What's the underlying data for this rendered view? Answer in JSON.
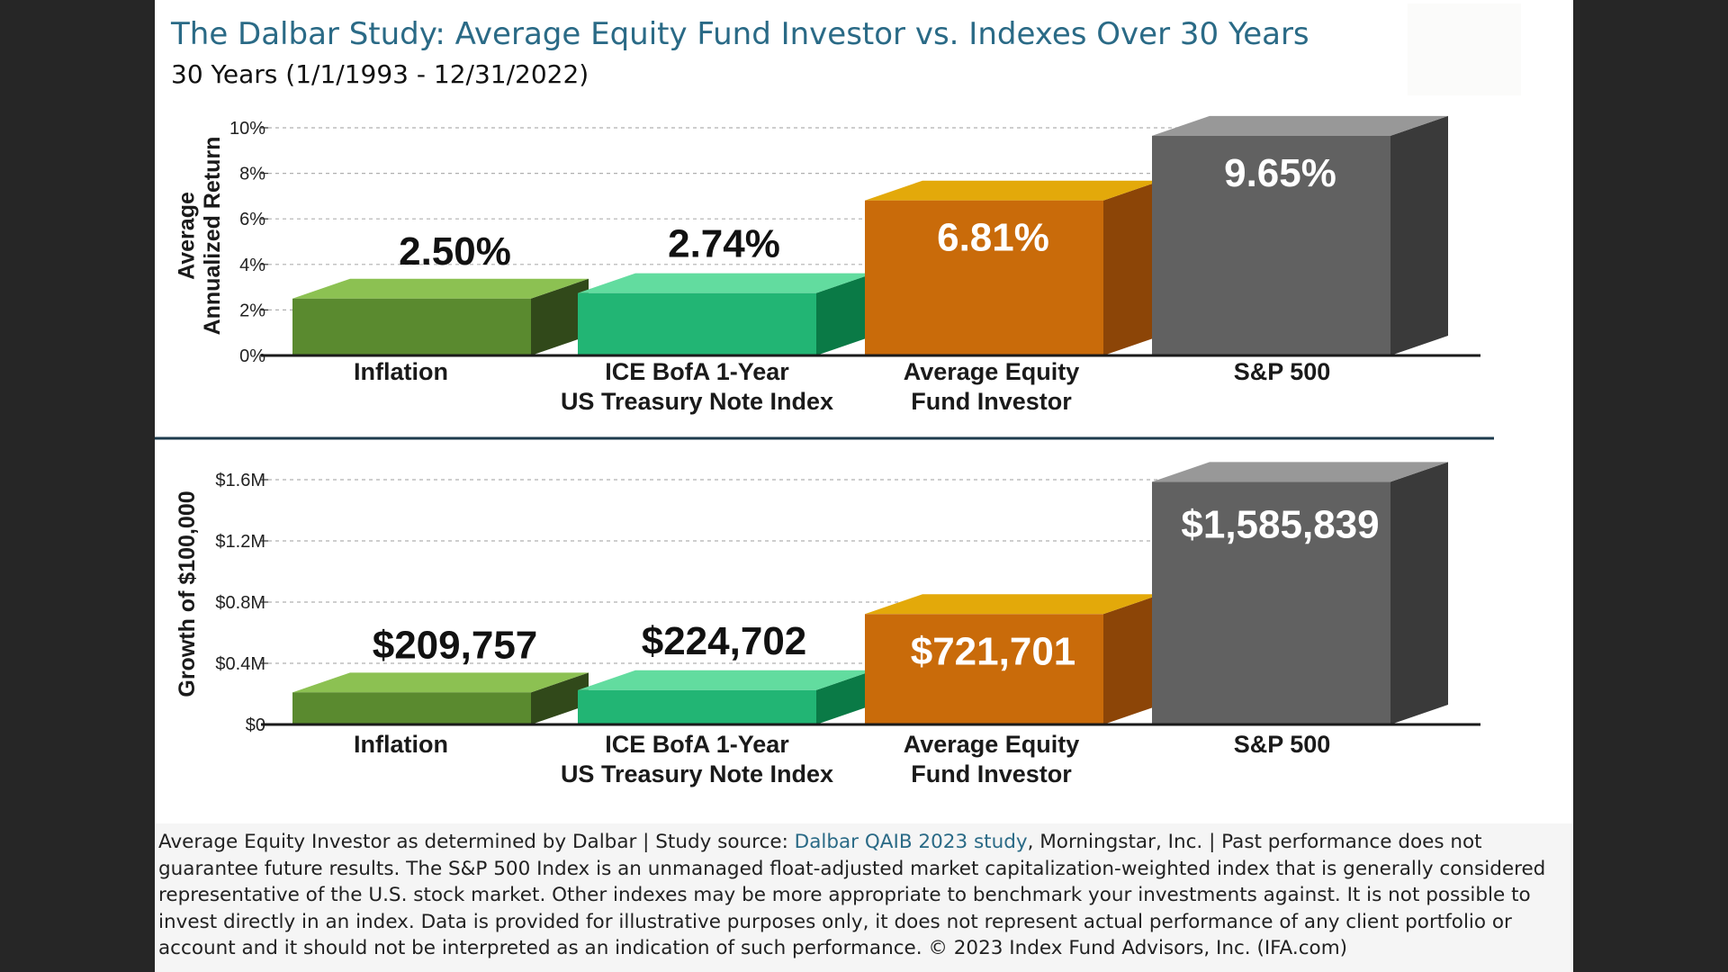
{
  "title": "The Dalbar Study: Average Equity Fund Investor vs. Indexes Over 30 Years",
  "subtitle": "30 Years (1/1/1993 - 12/31/2022)",
  "chart_data": [
    {
      "type": "bar",
      "title": "",
      "ylabel": "Average Annualized Return",
      "ylabel_lines": [
        "Average",
        "Annualized Return"
      ],
      "ylim": [
        0,
        10
      ],
      "tick_values": [
        0,
        2,
        4,
        6,
        8,
        10
      ],
      "tick_labels": [
        "0%",
        "2%",
        "4%",
        "6%",
        "8%",
        "10%"
      ],
      "grid": true,
      "categories": [
        "Inflation",
        "ICE BofA 1-Year US Treasury Note Index",
        "Average Equity Fund Investor",
        "S&P 500"
      ],
      "category_lines": [
        [
          "Inflation"
        ],
        [
          "ICE BofA 1-Year",
          "US Treasury Note Index"
        ],
        [
          "Average Equity",
          "Fund Investor"
        ],
        [
          "S&P 500"
        ]
      ],
      "values": [
        2.5,
        2.74,
        6.81,
        9.65
      ],
      "data_labels": [
        "2.50%",
        "2.74%",
        "6.81%",
        "9.65%"
      ],
      "colors": [
        "#5a8a2f",
        "#22b574",
        "#c96b0a",
        "#616161"
      ]
    },
    {
      "type": "bar",
      "title": "",
      "ylabel": "Growth of $100,000",
      "ylabel_lines": [
        "Growth of $100,000"
      ],
      "ylim": [
        0,
        1600000
      ],
      "tick_values": [
        0,
        400000,
        800000,
        1200000,
        1600000
      ],
      "tick_labels": [
        "$0",
        "$0.4M",
        "$0.8M",
        "$1.2M",
        "$1.6M"
      ],
      "grid": true,
      "categories": [
        "Inflation",
        "ICE BofA 1-Year US Treasury Note Index",
        "Average Equity Fund Investor",
        "S&P 500"
      ],
      "category_lines": [
        [
          "Inflation"
        ],
        [
          "ICE BofA 1-Year",
          "US Treasury Note Index"
        ],
        [
          "Average Equity",
          "Fund Investor"
        ],
        [
          "S&P 500"
        ]
      ],
      "values": [
        209757,
        224702,
        721701,
        1585839
      ],
      "data_labels": [
        "$209,757",
        "$224,702",
        "$721,701",
        "$1,585,839"
      ],
      "colors": [
        "#5a8a2f",
        "#22b574",
        "#c96b0a",
        "#616161"
      ]
    }
  ],
  "footer": {
    "text_before_link": "Average Equity Investor as determined by Dalbar | Study source: ",
    "link_text": "Dalbar QAIB 2023 study",
    "text_after_link": ", Morningstar, Inc. | Past performance does not guarantee future results. The S&P 500 Index is an unmanaged float-adjusted market capitalization-weighted index that is generally considered representative of the U.S. stock market. Other indexes may be more appropriate to benchmark your investments against. It is not possible to invest directly in an index. Data is provided for illustrative purposes only, it does not represent actual performance of any client portfolio or account and it should not be interpreted as an indication of such performance. © 2023 Index Fund Advisors, Inc. (IFA.com)"
  }
}
